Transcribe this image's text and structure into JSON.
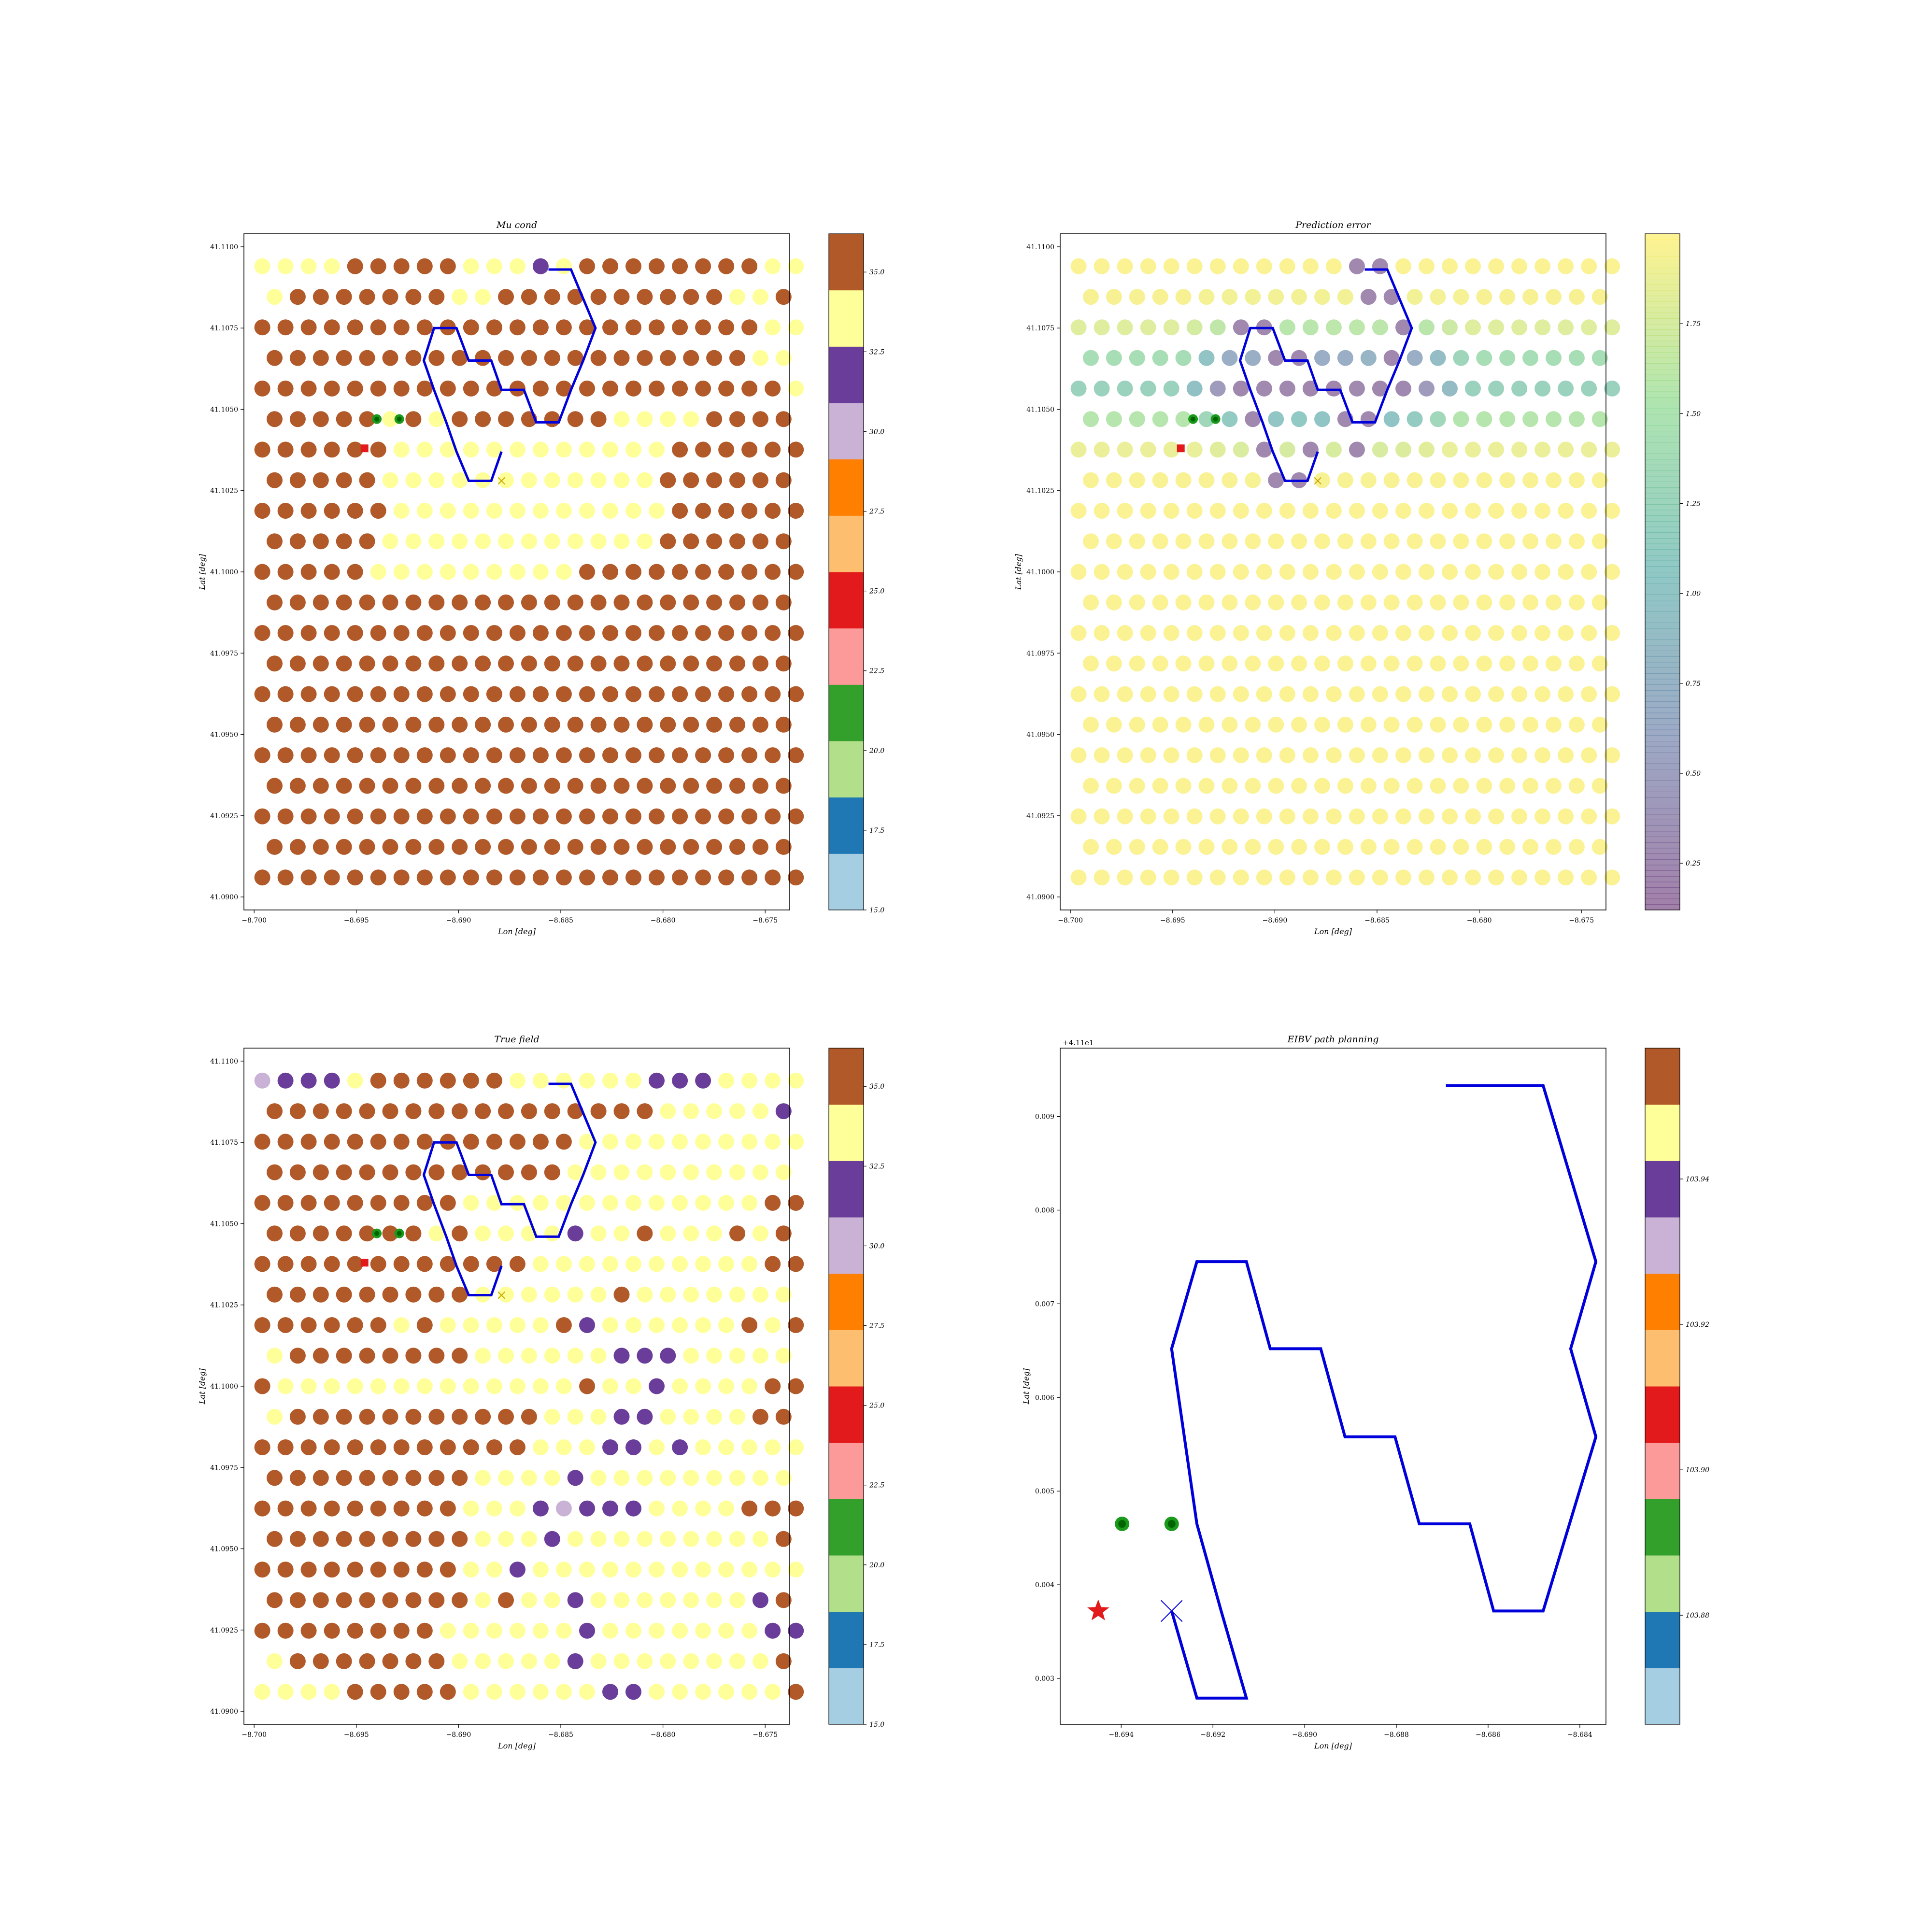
{
  "figure": {
    "background": "#ffffff",
    "panels": [
      {
        "id": "mu",
        "title": "Mu cond",
        "xlabel": "Lon [deg]",
        "ylabel": "Lat [deg]",
        "xticks": [
          "−8.700",
          "−8.695",
          "−8.690",
          "−8.685",
          "−8.680",
          "−8.675"
        ],
        "yticks": [
          "41.0900",
          "41.0925",
          "41.0950",
          "41.0975",
          "41.1000",
          "41.1025",
          "41.1050",
          "41.1075",
          "41.1100"
        ],
        "cbar_ticks": [
          "15.0",
          "17.5",
          "20.0",
          "22.5",
          "25.0",
          "27.5",
          "30.0",
          "32.5",
          "35.0"
        ]
      },
      {
        "id": "err",
        "title": "Prediction error",
        "xlabel": "Lon [deg]",
        "ylabel": "Lat [deg]",
        "xticks": [
          "−8.700",
          "−8.695",
          "−8.690",
          "−8.685",
          "−8.680",
          "−8.675"
        ],
        "yticks": [
          "41.0900",
          "41.0925",
          "41.0950",
          "41.0975",
          "41.1000",
          "41.1025",
          "41.1050",
          "41.1075",
          "41.1100"
        ],
        "cbar_ticks": [
          "0.25",
          "0.50",
          "0.75",
          "1.00",
          "1.25",
          "1.50",
          "1.75"
        ]
      },
      {
        "id": "truth",
        "title": "True field",
        "xlabel": "Lon [deg]",
        "ylabel": "Lat [deg]",
        "xticks": [
          "−8.700",
          "−8.695",
          "−8.690",
          "−8.685",
          "−8.680",
          "−8.675"
        ],
        "yticks": [
          "41.0900",
          "41.0925",
          "41.0950",
          "41.0975",
          "41.1000",
          "41.1025",
          "41.1050",
          "41.1075",
          "41.1100"
        ],
        "cbar_ticks": [
          "15.0",
          "17.5",
          "20.0",
          "22.5",
          "25.0",
          "27.5",
          "30.0",
          "32.5",
          "35.0"
        ]
      },
      {
        "id": "eibv",
        "title": "EIBV path planning",
        "xlabel": "Lon [deg]",
        "ylabel": "Lat [deg]",
        "offset_label": "+4.11e1",
        "xticks": [
          "−8.694",
          "−8.692",
          "−8.690",
          "−8.688",
          "−8.686",
          "−8.684"
        ],
        "yticks": [
          "0.003",
          "0.004",
          "0.005",
          "0.006",
          "0.007",
          "0.008",
          "0.009"
        ],
        "cbar_ticks": [
          "103.88",
          "103.90",
          "103.92",
          "103.94"
        ]
      }
    ]
  },
  "chart_data": [
    {
      "type": "scatter",
      "title": "Mu cond",
      "xlabel": "Lon [deg]",
      "ylabel": "Lat [deg]",
      "xlim": [
        -8.7005,
        -8.6738
      ],
      "ylim": [
        41.0896,
        41.1104
      ],
      "grid": false,
      "colormap": "Paired",
      "colors": [
        "#a6cee3",
        "#1f78b4",
        "#b2df8a",
        "#33a02c",
        "#fb9a99",
        "#e31a1c",
        "#fdbf6f",
        "#ff7f00",
        "#cab2d6",
        "#6a3d9a",
        "#ffff99",
        "#b15928"
      ],
      "clim": [
        15.0,
        36.2
      ],
      "grid_points": {
        "rows": 21,
        "lat_start": 41.0906,
        "lat_step": 0.00094,
        "lon_even": [
          -8.6996,
          -8.6735
        ],
        "lon_odd": [
          -8.699,
          -8.6741
        ],
        "points_even": 24,
        "points_odd": 23
      },
      "cell_classes": [
        "BBBBBBBBBBBBBBBBBBBBBBBB",
        "BBBBBBBBBBBBBBBBBBBBBBB",
        "BBBBBBBBBBBBBBBBBBBBBBBB",
        "BBBBBBBBBBBBBBBBBBBBBBB",
        "BBBBBBBBBBBBBBBBBBBBBBBB",
        "BBBBBBBBBBBBBBBBBBBBBBB",
        "BBBBBBBBBBBBBBBBBBBBBBBB",
        "BBBBBBBBBBBBBBBBBBBBBBB",
        "BBBBBBBBBBBBBBBBBBBBBBBB",
        "BBBBBBBBBBBBBBBBBBBBBBB",
        "BBBBBYYYYYYYYYBBBBBBBBBB",
        "BBBBBYYYYYYYYYYYYBBBBBB",
        "BBBBBBYYYYYYYYYYYYBBBBBB",
        "BBBBBYYYYYYYYYYYYBBBBBB",
        "BBBBBBYYYYYYYYYYYYBBBBBB",
        "BBBBBYBYBBBBBBBYYYYBBBB",
        "BBBBBBBBBBBBBBBBBBBBBBBY",
        "BBBBBBBBBBBBBBBBBBBBBYY",
        "BBBBBBBBBBBBBBBBBBBBBBYY",
        "YBBBBBBBYYBBBBBBBBBBYY",
        "YYYYBBBBBYYYPYBBBBBBBBYY"
      ],
      "path": [
        [
          -8.6856,
          41.1093
        ],
        [
          -8.6845,
          41.1093
        ],
        [
          -8.6839,
          41.1084
        ],
        [
          -8.6833,
          41.1075
        ],
        [
          -8.6839,
          41.1065
        ],
        [
          -8.6845,
          41.1056
        ],
        [
          -8.6851,
          41.1046
        ],
        [
          -8.6862,
          41.1046
        ],
        [
          -8.6868,
          41.1056
        ],
        [
          -8.6879,
          41.1056
        ],
        [
          -8.6884,
          41.1065
        ],
        [
          -8.6895,
          41.1065
        ],
        [
          -8.6901,
          41.1075
        ],
        [
          -8.6912,
          41.1075
        ],
        [
          -8.6917,
          41.1065
        ],
        [
          -8.6912,
          41.1056
        ],
        [
          -8.6906,
          41.1046
        ],
        [
          -8.6901,
          41.1037
        ],
        [
          -8.6895,
          41.1028
        ],
        [
          -8.6884,
          41.1028
        ],
        [
          -8.6879,
          41.1037
        ]
      ],
      "markers": {
        "start": [
          -8.6879,
          41.1028
        ],
        "obs": [
          [
            -8.694,
            41.1047
          ],
          [
            -8.6929,
            41.1047
          ]
        ],
        "current": [
          -8.6946,
          41.1038
        ]
      }
    },
    {
      "type": "scatter",
      "title": "Prediction error",
      "xlabel": "Lon [deg]",
      "ylabel": "Lat [deg]",
      "xlim": [
        -8.7005,
        -8.6738
      ],
      "ylim": [
        41.0896,
        41.1104
      ],
      "grid": false,
      "colormap": "viridis",
      "clim": [
        0.12,
        2.0
      ],
      "field": {
        "center_lat": 41.1058,
        "sigma_lat": 0.0014,
        "base": 1.98,
        "dip": 1.82,
        "along_path": 0.22
      },
      "path_ref": 0,
      "markers": {
        "start": [
          -8.6879,
          41.1028
        ],
        "obs": [
          [
            -8.694,
            41.1047
          ],
          [
            -8.6929,
            41.1047
          ]
        ],
        "current": [
          -8.6946,
          41.1038
        ]
      }
    },
    {
      "type": "scatter",
      "title": "True field",
      "xlabel": "Lon [deg]",
      "ylabel": "Lat [deg]",
      "xlim": [
        -8.7005,
        -8.6738
      ],
      "ylim": [
        41.0896,
        41.1104
      ],
      "grid": false,
      "colormap": "Paired",
      "colors": [
        "#a6cee3",
        "#1f78b4",
        "#b2df8a",
        "#33a02c",
        "#fb9a99",
        "#e31a1c",
        "#fdbf6f",
        "#ff7f00",
        "#cab2d6",
        "#6a3d9a",
        "#ffff99",
        "#b15928"
      ],
      "clim": [
        15.0,
        36.2
      ],
      "cell_classes": [
        "YYYYBBBBBYYYYYYPPYYYYYYB",
        "YBBBBBBBYYYYYPYYYYYYYYB",
        "BBBBBBBBYYYYYYPYYYYYYYPP",
        "BBBBBBBBBYBYYPYYYYYYYPB",
        "BBBBBBBBBYYPYYYYYYYYYYYY",
        "BBBBBBBBBYYYPYYYYYYYYYB",
        "BBBBBBBBBYYYPLPPPYYYYBBB",
        "BBBBBBBBBYYYYPYYYYYYYYY",
        "BBBBBBBBBBBBYYYPPYPYYYYY",
        "YBBBBBBBBBBBYYYPPYYYYBB",
        "BYYYYYYYYYYYYYBYYPYYYYBB",
        "YBBBBBBBBYYYYYYPPPYYYYY",
        "BBBBBBYBYYYYYBPYYYYYYBY",
        "BBBBBBBBBYYYYYYBYYYYYYYB",
        "BBBBBBBBBBBBYYYYYYYYYYBB",
        "BBBBBBBYBYYYYPYYBYYYBYB",
        "BBBBBBBBBYYYYYYYYYYYYYB",
        "BBBBBBBBBBBBBYYYYYYYYYYBB",
        "BBBBBBBBBBBBBBYYYYYYYYYY",
        "BBBBBBBBBBBBBBBBBYYYYYPPYB",
        "LPPPYBBBBBBYYYYYYPPPYYYY"
      ],
      "path_ref": 0,
      "markers": {
        "start": [
          -8.6879,
          41.1028
        ],
        "obs": [
          [
            -8.694,
            41.1047
          ],
          [
            -8.6929,
            41.1047
          ]
        ],
        "current": [
          -8.6946,
          41.1038
        ]
      }
    },
    {
      "type": "line",
      "title": "EIBV path planning",
      "xlabel": "Lon [deg]",
      "ylabel": "Lat [deg]",
      "offset_label": "+4.11e1",
      "xlim": [
        -8.69533,
        -8.68343
      ],
      "ylim": [
        41.10251,
        41.10973
      ],
      "grid": false,
      "series": [
        {
          "values": [
            [
              -8.68692,
              41.10933
            ],
            [
              -8.6848,
              41.10933
            ],
            [
              -8.68365,
              41.10745
            ],
            [
              -8.6842,
              41.10652
            ],
            [
              -8.68365,
              41.10558
            ],
            [
              -8.6848,
              41.10372
            ],
            [
              -8.68588,
              41.10372
            ],
            [
              -8.6864,
              41.10465
            ],
            [
              -8.6875,
              41.10465
            ],
            [
              -8.68803,
              41.10558
            ],
            [
              -8.68912,
              41.10558
            ],
            [
              -8.68965,
              41.10652
            ],
            [
              -8.69075,
              41.10652
            ],
            [
              -8.69127,
              41.10745
            ],
            [
              -8.69235,
              41.10745
            ],
            [
              -8.6929,
              41.10652
            ],
            [
              -8.69235,
              41.10465
            ],
            [
              -8.69182,
              41.10372
            ],
            [
              -8.69127,
              41.10279
            ],
            [
              -8.69235,
              41.10279
            ],
            [
              -8.6929,
              41.10372
            ]
          ]
        }
      ],
      "markers": {
        "star": [
          -8.6945,
          41.10372
        ],
        "x": [
          -8.6929,
          41.10372
        ],
        "obs": [
          [
            -8.69398,
            41.10465
          ],
          [
            -8.6929,
            41.10465
          ]
        ]
      },
      "colorbar": {
        "clim": [
          103.865,
          103.958
        ],
        "ticks": [
          103.88,
          103.9,
          103.92,
          103.94
        ]
      }
    }
  ]
}
